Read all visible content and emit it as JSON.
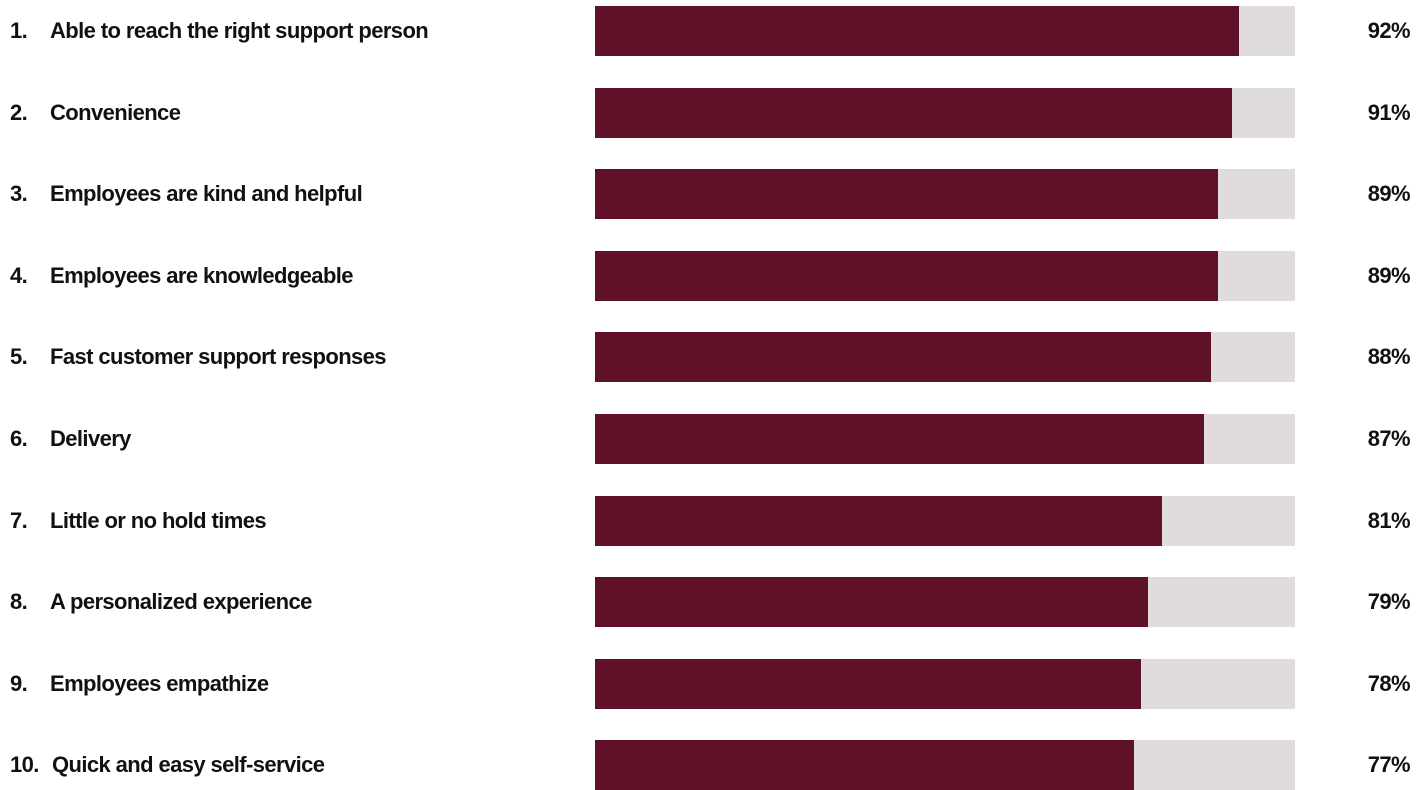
{
  "colors": {
    "bar_fill": "#5e1127",
    "bar_track": "#e0dcdd",
    "text": "#111111",
    "background": "#ffffff"
  },
  "chart_data": {
    "type": "bar",
    "orientation": "horizontal",
    "title": "",
    "xlabel": "",
    "ylabel": "",
    "xlim": [
      0,
      100
    ],
    "unit": "%",
    "grid": false,
    "legend": "none",
    "categories": [
      "Able to reach the right support person",
      "Convenience",
      "Employees are kind and helpful",
      "Employees are knowledgeable",
      "Fast customer support responses",
      "Delivery",
      "Little or no hold times",
      "A personalized experience",
      "Employees empathize",
      "Quick and easy self-service"
    ],
    "ranks": [
      "1.",
      "2.",
      "3.",
      "4.",
      "5.",
      "6.",
      "7.",
      "8.",
      "9.",
      "10."
    ],
    "values": [
      92,
      91,
      89,
      89,
      88,
      87,
      81,
      79,
      78,
      77
    ],
    "value_labels": [
      "92%",
      "91%",
      "89%",
      "89%",
      "88%",
      "87%",
      "81%",
      "79%",
      "78%",
      "77%"
    ]
  }
}
